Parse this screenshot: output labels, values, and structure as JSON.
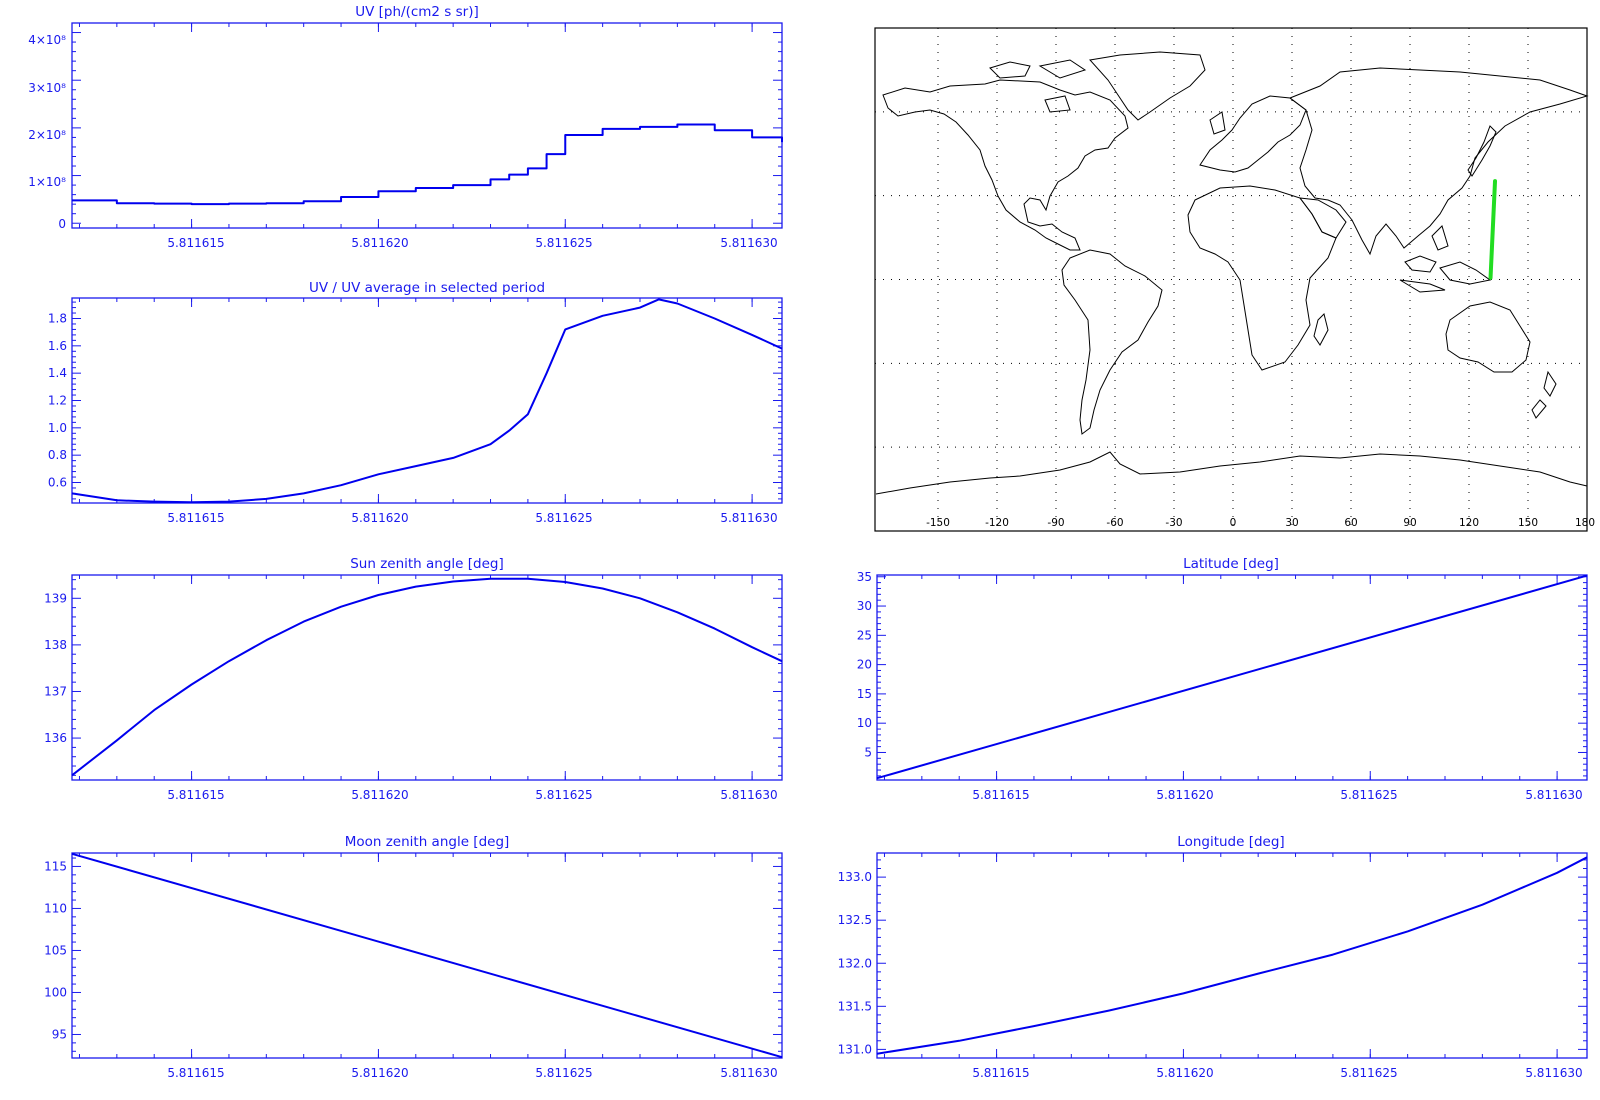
{
  "colors": {
    "plot": "#0000ee",
    "frame": "#1a1aee",
    "track": "#22dd22",
    "map": "#000000"
  },
  "panels": {
    "uv": {
      "title": "UV [ph/(cm2 s sr)]",
      "chart_data": {
        "type": "line",
        "title": "UV [ph/(cm2 s sr)]",
        "xlim": [
          5.8116118,
          5.8116308
        ],
        "ylim": [
          -10000000.0,
          420000000.0
        ],
        "xticks": [
          "5.811615",
          "5.811620",
          "5.811625",
          "5.811630"
        ],
        "yticks": [
          "0",
          "1×10⁸",
          "2×10⁸",
          "3×10⁸",
          "4×10⁸"
        ],
        "x": [
          5.8116118,
          5.811613,
          5.811614,
          5.811615,
          5.811616,
          5.811617,
          5.811618,
          5.811619,
          5.81162,
          5.811621,
          5.811622,
          5.811623,
          5.8116235,
          5.811624,
          5.8116245,
          5.811625,
          5.811626,
          5.811627,
          5.811628,
          5.811629,
          5.81163,
          5.8116308
        ],
        "y": [
          48000000.0,
          42000000.0,
          41000000.0,
          40000000.0,
          41000000.0,
          42000000.0,
          46000000.0,
          55000000.0,
          67000000.0,
          74000000.0,
          80000000.0,
          92000000.0,
          102000000.0,
          115000000.0,
          145000000.0,
          185000000.0,
          198000000.0,
          202000000.0,
          207000000.0,
          195000000.0,
          180000000.0,
          170000000.0
        ],
        "step": true
      }
    },
    "uvratio": {
      "title": "UV / UV average in selected period",
      "chart_data": {
        "type": "line",
        "title": "UV / UV average in selected period",
        "xlim": [
          5.8116118,
          5.8116308
        ],
        "ylim": [
          0.45,
          1.95
        ],
        "xticks": [
          "5.811615",
          "5.811620",
          "5.811625",
          "5.811630"
        ],
        "yticks": [
          "0.6",
          "0.8",
          "1.0",
          "1.2",
          "1.4",
          "1.6",
          "1.8"
        ],
        "x": [
          5.8116118,
          5.811613,
          5.811614,
          5.811615,
          5.811616,
          5.811617,
          5.811618,
          5.811619,
          5.81162,
          5.811621,
          5.811622,
          5.811623,
          5.8116235,
          5.811624,
          5.8116245,
          5.811625,
          5.811626,
          5.811627,
          5.8116275,
          5.811628,
          5.811629,
          5.81163,
          5.8116308
        ],
        "y": [
          0.52,
          0.47,
          0.46,
          0.455,
          0.46,
          0.48,
          0.52,
          0.58,
          0.66,
          0.72,
          0.78,
          0.88,
          0.98,
          1.1,
          1.4,
          1.72,
          1.82,
          1.88,
          1.94,
          1.91,
          1.8,
          1.68,
          1.58
        ],
        "step": false
      }
    },
    "sza": {
      "title": "Sun zenith angle [deg]",
      "chart_data": {
        "type": "line",
        "title": "Sun zenith angle [deg]",
        "xlim": [
          5.8116118,
          5.8116308
        ],
        "ylim": [
          135.1,
          139.5
        ],
        "xticks": [
          "5.811615",
          "5.811620",
          "5.811625",
          "5.811630"
        ],
        "yticks": [
          "136",
          "137",
          "138",
          "139"
        ],
        "x": [
          5.8116118,
          5.811613,
          5.811614,
          5.811615,
          5.811616,
          5.811617,
          5.811618,
          5.811619,
          5.81162,
          5.811621,
          5.811622,
          5.811623,
          5.811624,
          5.811625,
          5.811626,
          5.811627,
          5.811628,
          5.811629,
          5.81163,
          5.8116308
        ],
        "y": [
          135.2,
          135.95,
          136.6,
          137.15,
          137.65,
          138.1,
          138.5,
          138.82,
          139.07,
          139.25,
          139.36,
          139.42,
          139.42,
          139.35,
          139.21,
          139.0,
          138.7,
          138.35,
          137.95,
          137.65
        ],
        "step": false
      }
    },
    "lat": {
      "title": "Latitude [deg]",
      "chart_data": {
        "type": "line",
        "title": "Latitude [deg]",
        "xlim": [
          5.8116118,
          5.8116308
        ],
        "ylim": [
          0.3,
          35.3
        ],
        "xticks": [
          "5.811615",
          "5.811620",
          "5.811625",
          "5.811630"
        ],
        "yticks": [
          "5",
          "10",
          "15",
          "20",
          "25",
          "30",
          "35"
        ],
        "x": [
          5.8116118,
          5.8116308
        ],
        "y": [
          0.6,
          35.2
        ],
        "step": false
      }
    },
    "mza": {
      "title": "Moon zenith angle [deg]",
      "chart_data": {
        "type": "line",
        "title": "Moon zenith angle [deg]",
        "xlim": [
          5.8116118,
          5.8116308
        ],
        "ylim": [
          92.2,
          116.6
        ],
        "xticks": [
          "5.811615",
          "5.811620",
          "5.811625",
          "5.811630"
        ],
        "yticks": [
          "95",
          "100",
          "105",
          "110",
          "115"
        ],
        "x": [
          5.8116118,
          5.8116308
        ],
        "y": [
          116.5,
          92.3
        ],
        "step": false
      }
    },
    "lon": {
      "title": "Longitude [deg]",
      "chart_data": {
        "type": "line",
        "title": "Longitude [deg]",
        "xlim": [
          5.8116118,
          5.8116308
        ],
        "ylim": [
          130.9,
          133.28
        ],
        "xticks": [
          "5.811615",
          "5.811620",
          "5.811625",
          "5.811630"
        ],
        "yticks": [
          "131.0",
          "131.5",
          "132.0",
          "132.5",
          "133.0"
        ],
        "x": [
          5.8116118,
          5.811614,
          5.811616,
          5.811618,
          5.81162,
          5.811622,
          5.811624,
          5.811626,
          5.811628,
          5.81163,
          5.8116308
        ],
        "y": [
          130.95,
          131.1,
          131.27,
          131.45,
          131.65,
          131.88,
          132.1,
          132.37,
          132.68,
          133.05,
          133.23
        ],
        "step": false
      }
    },
    "map": {
      "xticks": [
        "-150",
        "-120",
        "-90",
        "-60",
        "-30",
        "0",
        "30",
        "60",
        "90",
        "120",
        "150",
        "180"
      ],
      "track": {
        "lon_start": 130.95,
        "lat_start": 0.6,
        "lon_end": 133.23,
        "lat_end": 35.2
      }
    }
  }
}
